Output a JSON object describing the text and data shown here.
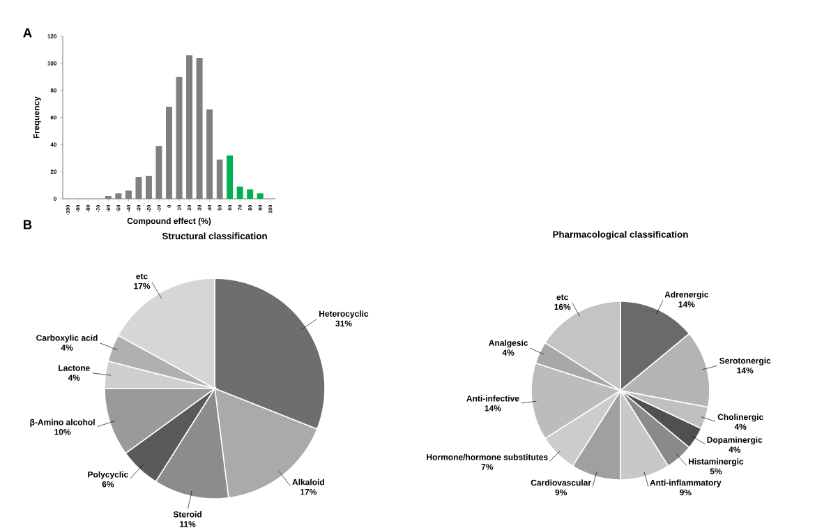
{
  "chart_data": [
    {
      "type": "bar",
      "xlabel": "Compound effect (%)",
      "ylabel": "Frequency",
      "annotations": [
        "A"
      ],
      "categories": [
        "-100",
        "-90",
        "-80",
        "-70",
        "-60",
        "-50",
        "-40",
        "-30",
        "-20",
        "-10",
        "0",
        "10",
        "20",
        "30",
        "40",
        "50",
        "60",
        "70",
        "80",
        "90",
        "100"
      ],
      "values": [
        0,
        0,
        0,
        0,
        2,
        4,
        6,
        16,
        17,
        39,
        68,
        90,
        106,
        104,
        66,
        29,
        32,
        9,
        7,
        4,
        0
      ],
      "colors": [
        "#7f7f7f",
        "#7f7f7f",
        "#7f7f7f",
        "#7f7f7f",
        "#7f7f7f",
        "#7f7f7f",
        "#7f7f7f",
        "#7f7f7f",
        "#7f7f7f",
        "#7f7f7f",
        "#7f7f7f",
        "#7f7f7f",
        "#7f7f7f",
        "#7f7f7f",
        "#7f7f7f",
        "#7f7f7f",
        "#00b050",
        "#00b050",
        "#00b050",
        "#00b050",
        "#7f7f7f"
      ],
      "ylim": [
        0,
        120
      ],
      "yticks": [
        0,
        20,
        40,
        60,
        80,
        100,
        120
      ]
    },
    {
      "type": "pie",
      "title": "Structural classification",
      "annotations": [
        "B"
      ],
      "categories": [
        "Heterocyclic",
        "Alkaloid",
        "Steroid",
        "Polycyclic",
        "β-Amino alcohol",
        "Lactone",
        "Carboxylic acid",
        "etc"
      ],
      "values": [
        31,
        17,
        11,
        6,
        10,
        4,
        4,
        17
      ],
      "value_labels": [
        "31%",
        "17%",
        "11%",
        "6%",
        "10%",
        "4%",
        "4%",
        "17%"
      ],
      "colors": [
        "#6e6e6e",
        "#aaaaaa",
        "#8c8c8c",
        "#5a5a5a",
        "#9a9a9a",
        "#cfcfcf",
        "#b0b0b0",
        "#d6d6d6"
      ]
    },
    {
      "type": "pie",
      "title": "Pharmacological classification",
      "categories": [
        "Adrenergic",
        "Serotonergic",
        "Cholinergic",
        "Dopaminergic",
        "Histaminergic",
        "Anti-inflammatory",
        "Cardiovascular",
        "Hormone/hormone substitutes",
        "Anti-infective",
        "Analgesic",
        "etc"
      ],
      "values": [
        14,
        14,
        4,
        4,
        5,
        9,
        9,
        7,
        14,
        4,
        16
      ],
      "value_labels": [
        "14%",
        "14%",
        "4%",
        "4%",
        "5%",
        "9%",
        "9%",
        "7%",
        "14%",
        "4%",
        "16%"
      ],
      "colors": [
        "#6a6a6a",
        "#b4b4b4",
        "#c0c0c0",
        "#505050",
        "#8a8a8a",
        "#c8c8c8",
        "#a0a0a0",
        "#cccccc",
        "#bcbcbc",
        "#a8a8a8",
        "#c4c4c4"
      ]
    }
  ]
}
